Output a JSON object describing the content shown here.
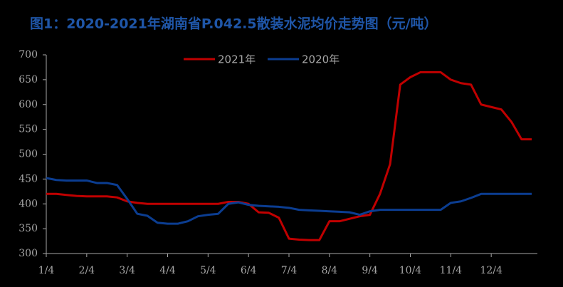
{
  "chart_data": {
    "type": "line",
    "title": "图1：2020-2021年湖南省P.042.5散装水泥均价走势图（元/吨）",
    "categories": [
      "1/4",
      null,
      null,
      null,
      "2/4",
      null,
      null,
      null,
      "3/4",
      null,
      null,
      null,
      "4/4",
      null,
      null,
      null,
      "5/4",
      null,
      null,
      null,
      "6/4",
      null,
      null,
      null,
      "7/4",
      null,
      null,
      null,
      "8/4",
      null,
      null,
      null,
      "9/4",
      null,
      null,
      null,
      "10/4",
      null,
      null,
      null,
      "11/4",
      null,
      null,
      null,
      "12/4",
      null,
      null,
      null,
      null
    ],
    "series": [
      {
        "name": "2021年",
        "color": "#c00000",
        "values": [
          420,
          420,
          418,
          416,
          415,
          415,
          415,
          413,
          405,
          402,
          400,
          400,
          400,
          400,
          400,
          400,
          400,
          400,
          404,
          404,
          400,
          383,
          382,
          372,
          330,
          328,
          327,
          327,
          365,
          365,
          370,
          375,
          378,
          420,
          480,
          640,
          655,
          665,
          665,
          665,
          650,
          643,
          640,
          600,
          595,
          590,
          565,
          530,
          530
        ]
      },
      {
        "name": "2020年",
        "color": "#0b3d91",
        "values": [
          452,
          448,
          447,
          447,
          447,
          442,
          442,
          438,
          410,
          380,
          376,
          362,
          360,
          360,
          365,
          375,
          378,
          380,
          400,
          403,
          398,
          396,
          395,
          394,
          392,
          388,
          387,
          386,
          385,
          384,
          383,
          378,
          385,
          388,
          388,
          388,
          388,
          388,
          388,
          388,
          402,
          405,
          412,
          420,
          420,
          420,
          420,
          420,
          420
        ]
      }
    ],
    "ylim": [
      300,
      700
    ],
    "yticks": [
      300,
      350,
      400,
      450,
      500,
      550,
      600,
      650,
      700
    ]
  }
}
